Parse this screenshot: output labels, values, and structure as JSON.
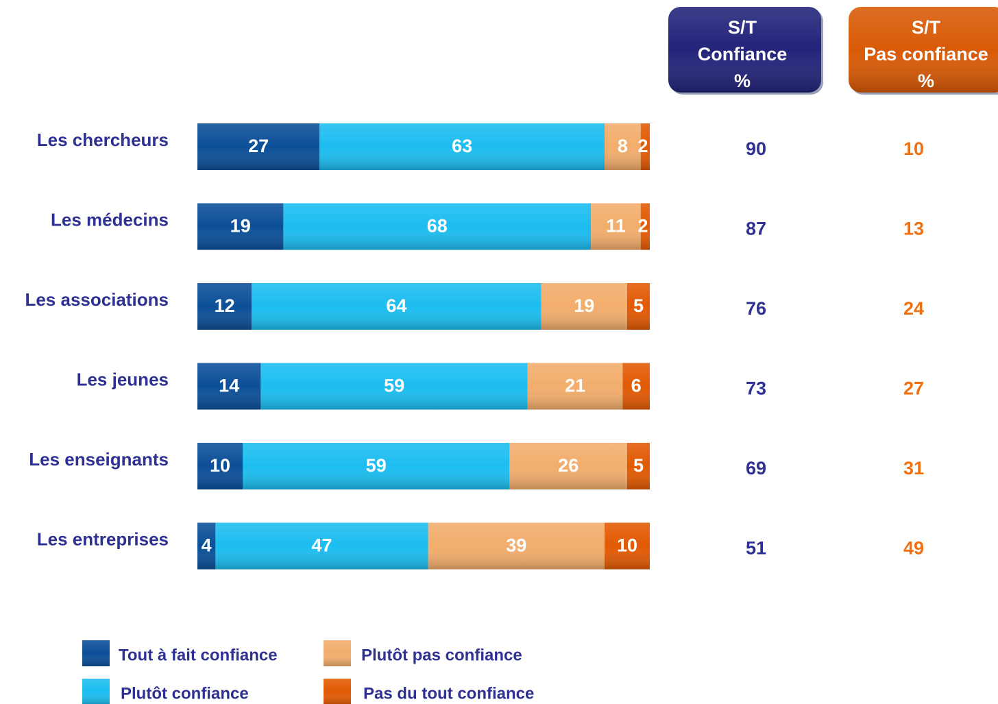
{
  "chart_data": {
    "type": "stacked-bar-horizontal",
    "categories": [
      "Les chercheurs",
      "Les médecins",
      "Les associations",
      "Les jeunes",
      "Les enseignants",
      "Les entreprises"
    ],
    "series": [
      {
        "name": "Tout à fait confiance",
        "color": "#0b4f98",
        "values": [
          27,
          19,
          12,
          14,
          10,
          4
        ]
      },
      {
        "name": "Plutôt confiance",
        "color": "#1cbdf0",
        "values": [
          63,
          68,
          64,
          59,
          59,
          47
        ]
      },
      {
        "name": "Plutôt pas confiance",
        "color": "#f2ad6c",
        "values": [
          8,
          11,
          19,
          21,
          26,
          39
        ]
      },
      {
        "name": "Pas du tout confiance",
        "color": "#e25a04",
        "values": [
          2,
          2,
          5,
          6,
          5,
          10
        ]
      }
    ],
    "xlim": [
      0,
      100
    ],
    "totals": [
      {
        "header": [
          "S/T",
          "Confiance",
          "%"
        ],
        "color": "#2e3192",
        "box_color": "#23247a",
        "values": [
          90,
          87,
          76,
          73,
          69,
          51
        ]
      },
      {
        "header": [
          "S/T",
          "Pas confiance",
          "%"
        ],
        "color": "#f07010",
        "box_color": "#d85a06",
        "values": [
          10,
          13,
          24,
          27,
          31,
          49
        ]
      }
    ]
  }
}
